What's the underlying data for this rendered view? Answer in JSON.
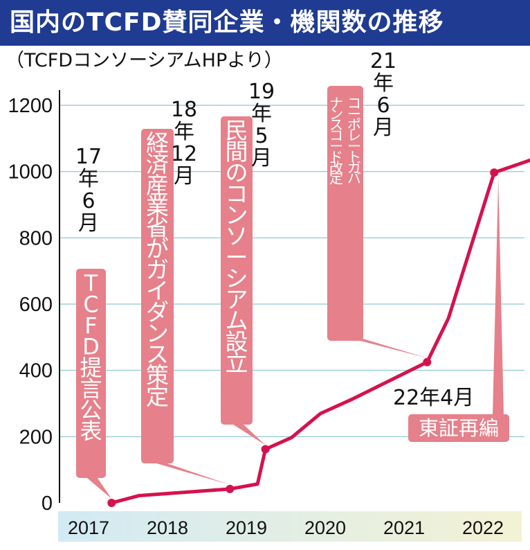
{
  "title": "国内のTCFD賛同企業・機関数の推移",
  "subtitle": "（TCFDコンソーシアムHPより）",
  "colors": {
    "title_bg": "#1f3b92",
    "line": "#d5124d",
    "callout": "#e6808a",
    "grid": "#9fcfd8",
    "axis_band_start": "#d2eaf4",
    "axis_band_end": "#f3f2d4"
  },
  "chart_data": {
    "type": "line",
    "title": "国内のTCFD賛同企業・機関数の推移",
    "subtitle": "（TCFDコンソーシアムHPより）",
    "xlabel": "",
    "ylabel": "",
    "ylim": [
      0,
      1200
    ],
    "x_ticks": [
      "2017",
      "2018",
      "2019",
      "2020",
      "2021",
      "2022"
    ],
    "y_ticks": [
      "0",
      "200",
      "400",
      "600",
      "800",
      "1000",
      "1200"
    ],
    "grid": true,
    "series": [
      {
        "values": [
          {
            "x": 2017.45,
            "y": 0
          },
          {
            "x": 2017.8,
            "y": 22
          },
          {
            "x": 2018.95,
            "y": 42
          },
          {
            "x": 2019.3,
            "y": 57
          },
          {
            "x": 2019.4,
            "y": 162
          },
          {
            "x": 2019.73,
            "y": 197
          },
          {
            "x": 2020.1,
            "y": 270
          },
          {
            "x": 2020.5,
            "y": 313
          },
          {
            "x": 2021.45,
            "y": 425
          },
          {
            "x": 2021.72,
            "y": 557
          },
          {
            "x": 2022.3,
            "y": 997
          },
          {
            "x": 2022.85,
            "y": 1042
          }
        ]
      }
    ],
    "annotations": [
      {
        "date_label": "17年6月",
        "label": "TCFD提言公表",
        "x": 2017.45,
        "y": 0
      },
      {
        "date_label": "18年12月",
        "label": "経済産業省がガイダンス策定",
        "x": 2018.95,
        "y": 42
      },
      {
        "date_label": "19年5月",
        "label": "民間のコンソーシアム設立",
        "x": 2019.4,
        "y": 162
      },
      {
        "date_label": "21年6月",
        "label": "コーポレートガバナンスコード改定",
        "x": 2021.45,
        "y": 425
      },
      {
        "date_label": "22年4月",
        "label": "東証再編",
        "x": 2022.3,
        "y": 997
      }
    ]
  }
}
